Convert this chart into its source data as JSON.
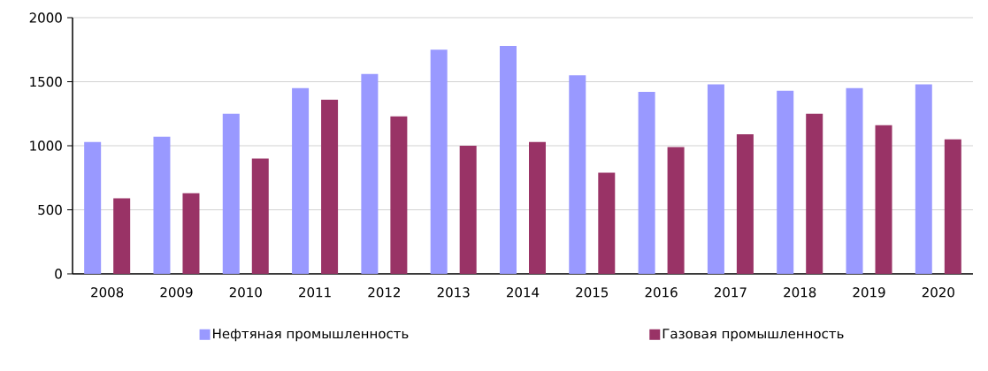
{
  "chart_data": {
    "type": "bar",
    "categories": [
      "2008",
      "2009",
      "2010",
      "2011",
      "2012",
      "2013",
      "2014",
      "2015",
      "2016",
      "2017",
      "2018",
      "2019",
      "2020"
    ],
    "series": [
      {
        "name": "Нефтяная промышленность",
        "color": "#9999ff",
        "values": [
          1030,
          1070,
          1250,
          1450,
          1560,
          1750,
          1780,
          1550,
          1420,
          1480,
          1430,
          1450,
          1480
        ]
      },
      {
        "name": "Газовая промышленность",
        "color": "#993366",
        "values": [
          590,
          630,
          900,
          1360,
          1230,
          1000,
          1030,
          790,
          990,
          1090,
          1250,
          1160,
          1050
        ]
      }
    ],
    "ylim": [
      0,
      2000
    ],
    "yticks": [
      0,
      500,
      1000,
      1500,
      2000
    ],
    "grid": "y",
    "legend": "bottom"
  }
}
